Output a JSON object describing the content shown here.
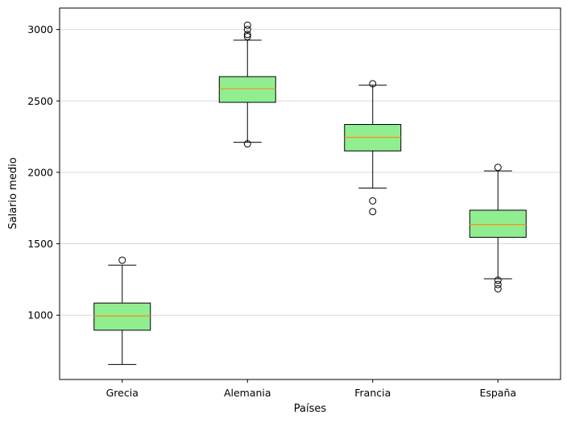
{
  "chart_data": {
    "type": "box",
    "title": "",
    "xlabel": "Países",
    "ylabel": "Salario medio",
    "categories": [
      "Grecia",
      "Alemania",
      "Francia",
      "España"
    ],
    "ylim": [
      550,
      3150
    ],
    "yticks": [
      1000,
      1500,
      2000,
      2500,
      3000
    ],
    "grid": "horizontal",
    "box_color": "#90ee90",
    "median_color": "#ff8c1a",
    "boxes": [
      {
        "category": "Grecia",
        "whisker_low": 655,
        "q1": 895,
        "median": 995,
        "q3": 1085,
        "whisker_high": 1350,
        "outliers": [
          1385
        ]
      },
      {
        "category": "Alemania",
        "whisker_low": 2210,
        "q1": 2490,
        "median": 2585,
        "q3": 2670,
        "whisker_high": 2925,
        "outliers": [
          2200,
          2950,
          2965,
          3000,
          3030
        ]
      },
      {
        "category": "Francia",
        "whisker_low": 1890,
        "q1": 2150,
        "median": 2245,
        "q3": 2335,
        "whisker_high": 2610,
        "outliers": [
          2620,
          1800,
          1725
        ]
      },
      {
        "category": "España",
        "whisker_low": 1255,
        "q1": 1545,
        "median": 1635,
        "q3": 1735,
        "whisker_high": 2010,
        "outliers": [
          2035,
          1245,
          1215,
          1185
        ]
      }
    ]
  }
}
